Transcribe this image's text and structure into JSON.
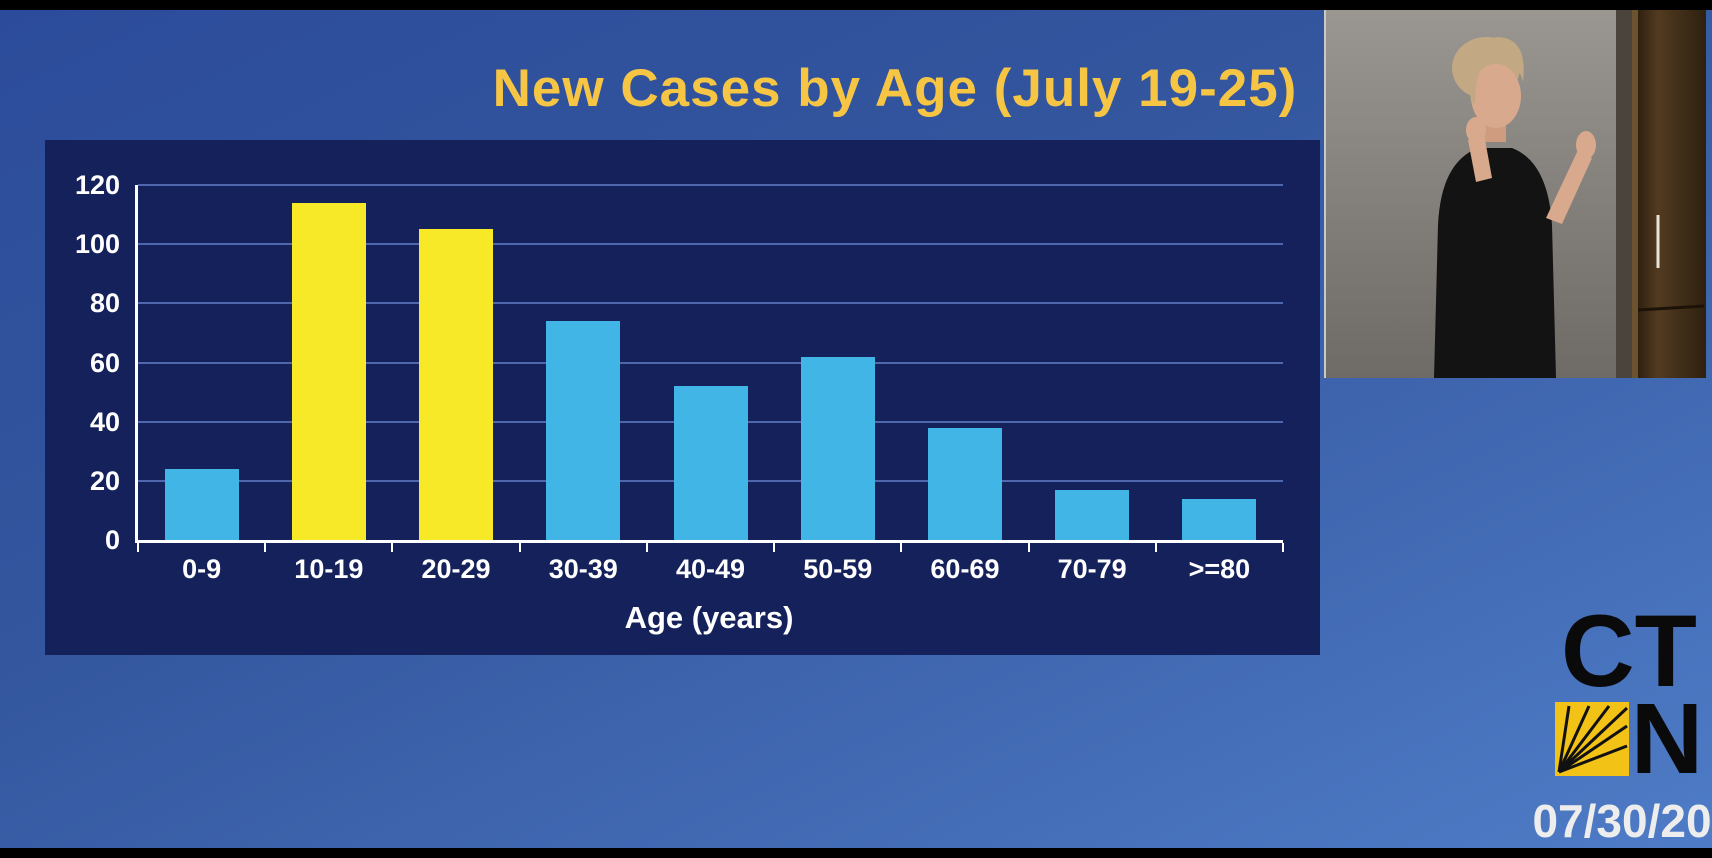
{
  "chart_data": {
    "type": "bar",
    "title": "New Cases by Age (July 19-25)",
    "categories": [
      "0-9",
      "10-19",
      "20-29",
      "30-39",
      "40-49",
      "50-59",
      "60-69",
      "70-79",
      ">=80"
    ],
    "values": [
      24,
      114,
      105,
      74,
      52,
      62,
      38,
      17,
      14
    ],
    "bar_colors": [
      "#41b6e6",
      "#f7e928",
      "#f7e928",
      "#41b6e6",
      "#41b6e6",
      "#41b6e6",
      "#41b6e6",
      "#41b6e6",
      "#41b6e6"
    ],
    "xlabel": "Age (years)",
    "ylabel": "",
    "ylim": [
      0,
      120
    ],
    "yticks": [
      0,
      20,
      40,
      60,
      80,
      100,
      120
    ],
    "grid": true,
    "legend_position": "none"
  },
  "branding": {
    "logo_text_top": "CT",
    "logo_text_bottom": "N",
    "date": "07/30/20"
  },
  "colors": {
    "slide_title": "#f7c544",
    "chart_panel": "#15215a",
    "bar_default": "#41b6e6",
    "bar_highlight": "#f7e928",
    "background": "#33569e",
    "gridline": "#4f68ad"
  }
}
